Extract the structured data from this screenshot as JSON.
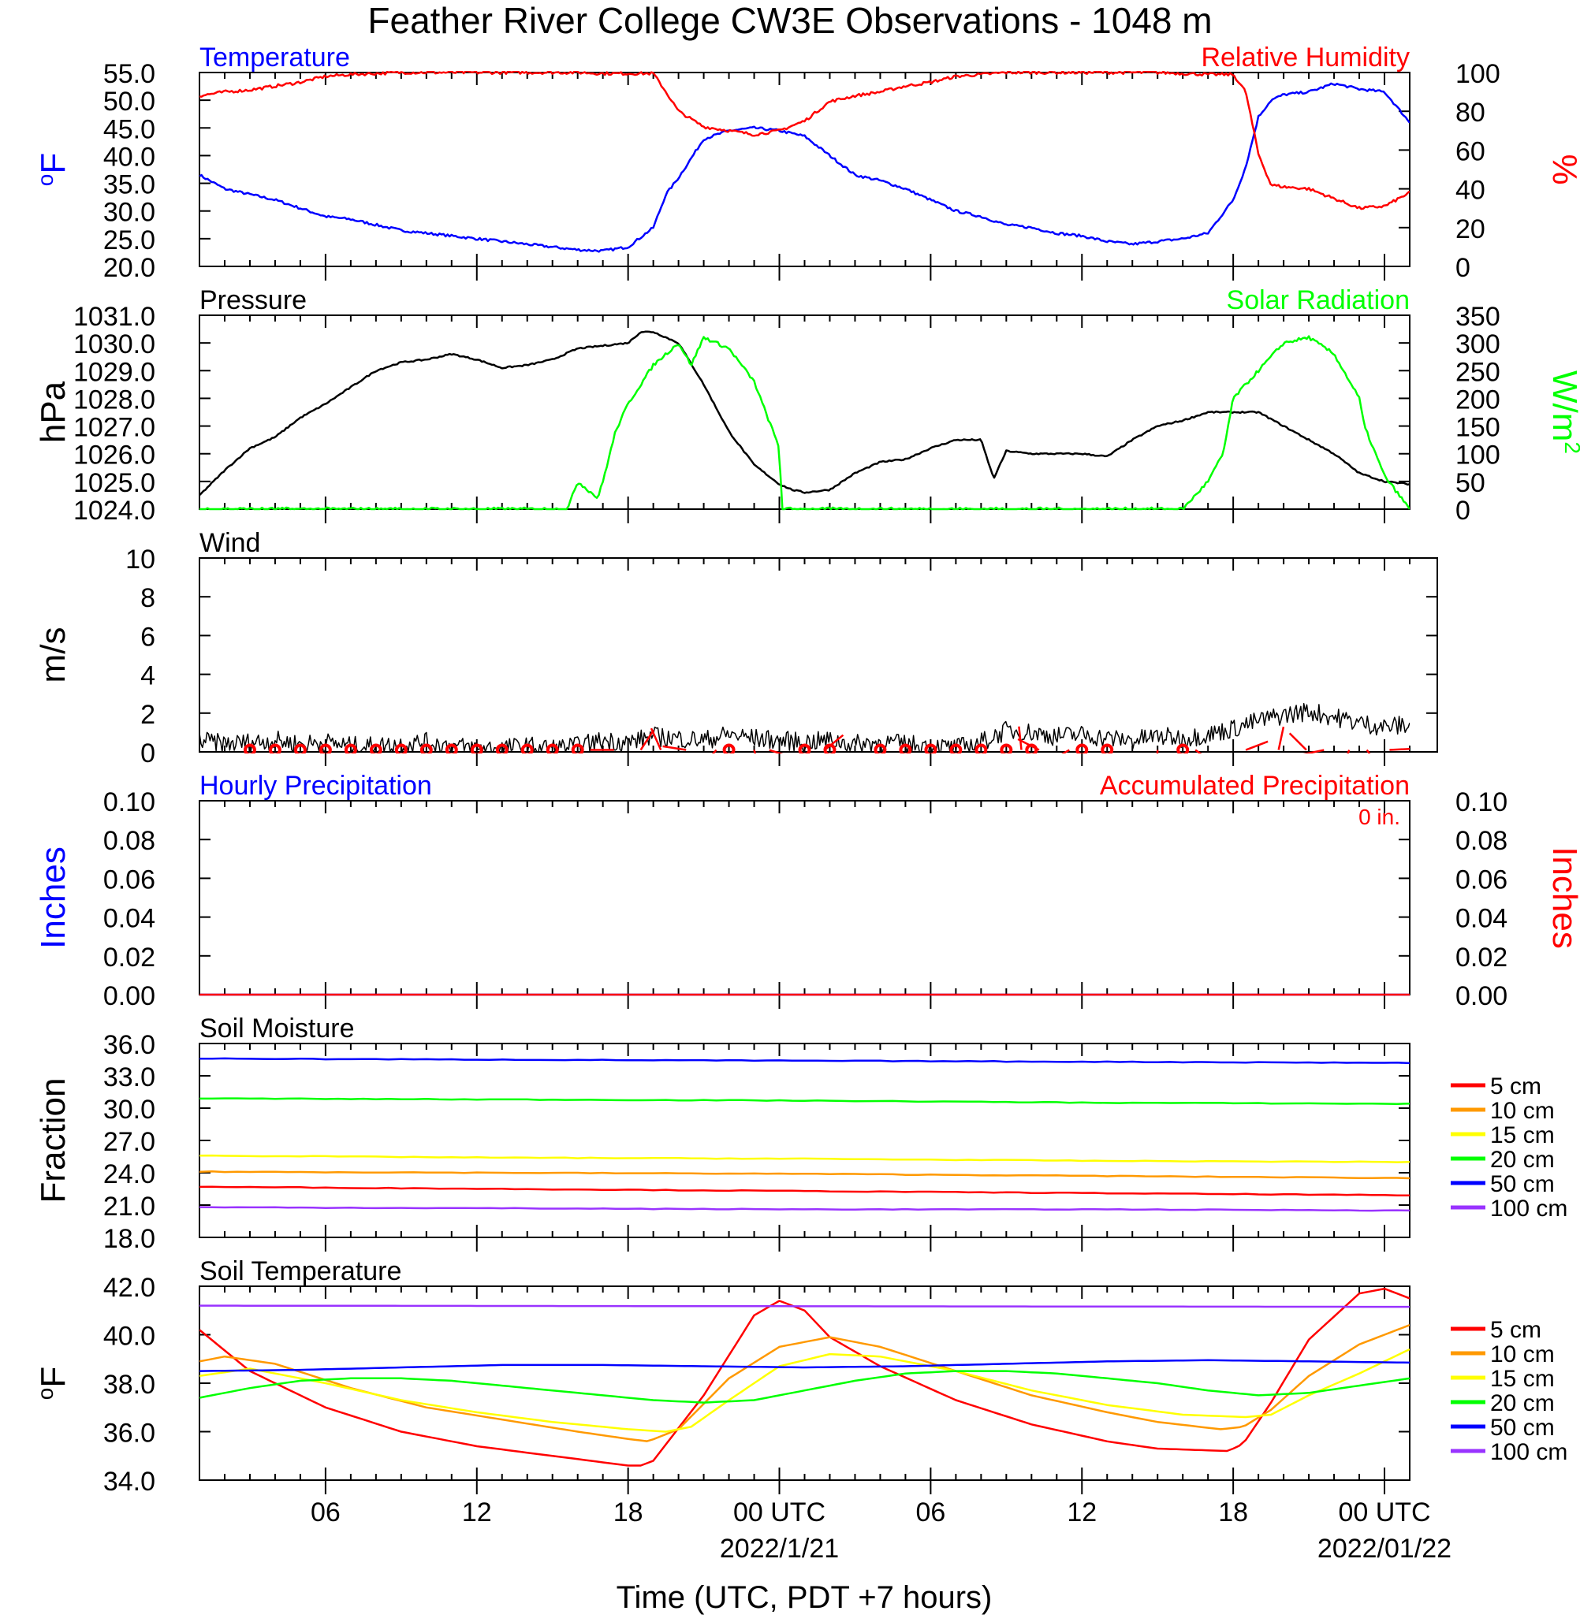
{
  "page_title": "Feather River College CW3E Observations - 1048 m",
  "x_axis": {
    "label": "Time (UTC, PDT +7 hours)",
    "range_hours": [
      0,
      48
    ],
    "ticks": [
      {
        "h": 5,
        "label": "06"
      },
      {
        "h": 11,
        "label": "12"
      },
      {
        "h": 17,
        "label": "18"
      },
      {
        "h": 23,
        "label": "00 UTC",
        "date": "2022/1/21"
      },
      {
        "h": 29,
        "label": "06"
      },
      {
        "h": 35,
        "label": "12"
      },
      {
        "h": 41,
        "label": "18"
      },
      {
        "h": 47,
        "label": "00 UTC",
        "date": "2022/01/22"
      }
    ]
  },
  "chart_data": [
    {
      "type": "line",
      "title_left": "Temperature",
      "title_right": "Relative Humidity",
      "ylabel_left": "oF",
      "ylabel_right": "%",
      "ylim_left": [
        20,
        55
      ],
      "ylim_right": [
        0,
        100
      ],
      "yticks_left": [
        "20.0",
        "25.0",
        "30.0",
        "35.0",
        "40.0",
        "45.0",
        "50.0",
        "55.0"
      ],
      "yticks_right": [
        "0",
        "20",
        "40",
        "60",
        "80",
        "100"
      ],
      "x_hours": [
        0,
        1,
        2,
        3,
        4,
        5,
        6,
        7,
        8,
        9,
        10,
        11,
        12,
        13,
        14,
        15,
        16,
        17,
        18,
        18.5,
        19,
        20,
        21,
        22,
        23,
        24,
        25,
        26,
        27,
        28,
        29,
        30,
        31,
        32,
        33,
        34,
        35,
        36,
        37,
        38,
        39,
        40,
        41,
        41.5,
        42,
        42.5,
        43,
        44,
        45,
        46,
        47,
        48
      ],
      "series": [
        {
          "name": "Temperature",
          "axis": "left",
          "color": "#0000ff",
          "values": [
            36.5,
            34,
            33,
            32,
            30.5,
            29,
            28.5,
            27.5,
            26.5,
            26,
            25.5,
            25,
            24.5,
            24,
            23.5,
            23,
            22.8,
            23.5,
            27,
            33,
            36,
            43,
            44.5,
            45,
            44.5,
            43.5,
            40,
            36.5,
            35.5,
            34,
            32,
            30,
            29,
            27.5,
            27,
            26,
            25.5,
            24.5,
            24,
            24.5,
            25,
            26,
            32,
            38,
            47,
            50,
            51,
            51.5,
            53,
            52,
            51.5,
            46
          ]
        },
        {
          "name": "Relative Humidity",
          "axis": "right",
          "color": "#ff0000",
          "values": [
            88,
            90,
            91,
            93,
            95,
            98,
            99,
            99.5,
            100,
            100,
            100,
            100,
            100,
            100,
            100,
            100,
            99.5,
            99.5,
            99.5,
            90,
            80,
            72,
            70,
            68,
            70,
            75,
            85,
            88,
            90,
            93,
            95,
            98,
            99,
            100,
            100,
            100,
            100,
            100,
            100,
            100,
            99.5,
            99,
            99,
            90,
            58,
            42,
            41,
            40,
            35,
            30,
            31,
            38
          ]
        }
      ]
    },
    {
      "type": "line",
      "title_left": "Pressure",
      "title_right": "Solar Radiation",
      "ylabel_left": "hPa",
      "ylabel_right": "W/m2",
      "ylim_left": [
        1024,
        1031
      ],
      "ylim_right": [
        0,
        350
      ],
      "yticks_left": [
        "1024.0",
        "1025.0",
        "1026.0",
        "1027.0",
        "1028.0",
        "1029.0",
        "1030.0",
        "1031.0"
      ],
      "yticks_right": [
        "0",
        "50",
        "100",
        "150",
        "200",
        "250",
        "300",
        "350"
      ],
      "series": [
        {
          "name": "Pressure",
          "axis": "left",
          "color": "#000000",
          "x_hours": [
            0,
            1,
            2,
            3,
            4,
            5,
            6,
            7,
            8,
            9,
            10,
            11,
            12,
            13,
            14,
            15,
            16,
            17,
            17.5,
            18,
            19,
            20,
            21,
            22,
            23,
            23.5,
            24,
            25,
            26,
            27,
            28,
            29,
            30,
            31,
            31.5,
            32,
            33,
            34,
            35,
            36,
            37,
            38,
            39,
            40,
            41,
            42,
            43,
            44,
            45,
            46,
            47,
            48
          ],
          "values": [
            1024.5,
            1025.4,
            1026.2,
            1026.6,
            1027.3,
            1027.8,
            1028.4,
            1029.0,
            1029.3,
            1029.4,
            1029.6,
            1029.4,
            1029.1,
            1029.2,
            1029.4,
            1029.8,
            1029.9,
            1030.0,
            1030.4,
            1030.4,
            1030.0,
            1028.5,
            1026.8,
            1025.6,
            1024.9,
            1024.7,
            1024.6,
            1024.7,
            1025.3,
            1025.7,
            1025.8,
            1026.2,
            1026.5,
            1026.5,
            1025.1,
            1026.1,
            1026.0,
            1026.0,
            1026.0,
            1025.9,
            1026.5,
            1027.0,
            1027.2,
            1027.5,
            1027.5,
            1027.5,
            1027.0,
            1026.5,
            1026.0,
            1025.3,
            1025.0,
            1024.9
          ]
        },
        {
          "name": "Solar Radiation",
          "axis": "right",
          "color": "#00ff00",
          "x_hours": [
            0,
            14.6,
            15,
            15.8,
            16,
            16.5,
            17,
            18,
            19,
            19.5,
            20,
            21,
            22,
            23,
            23.1,
            24,
            24.5,
            39,
            40,
            40.6,
            41,
            42,
            43,
            44,
            45,
            46,
            46.2,
            47,
            48
          ],
          "values": [
            0,
            0,
            50,
            20,
            50,
            140,
            190,
            260,
            300,
            260,
            310,
            290,
            230,
            110,
            0,
            0,
            0,
            0,
            50,
            100,
            200,
            250,
            300,
            310,
            280,
            200,
            150,
            60,
            0
          ]
        }
      ]
    },
    {
      "type": "line",
      "title_left": "Wind",
      "ylabel_left": "m/s",
      "ylim_left": [
        0,
        10
      ],
      "yticks_left": [
        "0",
        "2",
        "4",
        "6",
        "8",
        "10"
      ],
      "series": [
        {
          "name": "Wind",
          "color": "#000000",
          "x_hours": [
            0,
            1,
            2,
            3,
            4,
            5,
            6,
            7,
            8,
            9,
            10,
            11,
            12,
            13,
            14,
            15,
            16,
            17,
            18,
            19,
            20,
            21,
            22,
            23,
            24,
            25,
            26,
            27,
            28,
            29,
            30,
            31,
            32,
            33,
            34,
            35,
            36,
            37,
            38,
            39,
            40,
            41,
            42,
            43,
            44,
            45,
            46,
            47,
            48
          ],
          "values": [
            0.6,
            0.4,
            0.5,
            0.6,
            0.4,
            0.5,
            0.3,
            0.3,
            0.4,
            0.5,
            0.3,
            0.2,
            0.2,
            0.3,
            0.2,
            0.3,
            0.6,
            0.5,
            0.8,
            0.7,
            0.6,
            0.9,
            0.7,
            0.6,
            0.5,
            0.6,
            0.4,
            0.5,
            0.4,
            0.3,
            0.2,
            0.5,
            1.1,
            1.0,
            0.8,
            0.9,
            0.7,
            0.6,
            0.8,
            0.7,
            0.9,
            1.2,
            1.6,
            1.9,
            2.1,
            1.8,
            1.5,
            1.3,
            1.4
          ]
        }
      ],
      "calm_circles_hours": [
        2,
        3,
        4,
        5,
        6,
        7,
        8,
        9,
        10,
        11,
        12,
        13,
        14,
        15,
        21,
        24,
        25,
        27,
        28,
        29,
        30,
        31,
        32,
        33,
        35,
        36,
        39
      ],
      "barbs_hours": [
        15.5,
        17.5,
        18.3,
        19.3,
        20.5,
        22,
        22.6,
        24.8,
        32.6,
        33.3,
        34.5,
        38,
        39.5,
        41.5,
        42.8,
        43.9,
        44.6,
        45.6,
        46.3,
        47.2
      ]
    },
    {
      "type": "line",
      "title_left": "Hourly Precipitation",
      "title_right": "Accumulated Precipitation",
      "annotation": "0 in.",
      "ylabel_left": "Inches",
      "ylabel_right": "Inches",
      "ylim_left": [
        0,
        0.1
      ],
      "ylim_right": [
        0,
        0.1
      ],
      "yticks_left": [
        "0.00",
        "0.02",
        "0.04",
        "0.06",
        "0.08",
        "0.10"
      ],
      "yticks_right": [
        "0.00",
        "0.02",
        "0.04",
        "0.06",
        "0.08",
        "0.10"
      ],
      "series": [
        {
          "name": "Hourly Precipitation",
          "axis": "left",
          "color": "#0000ff",
          "x_hours": [
            0,
            48
          ],
          "values": [
            0,
            0
          ]
        },
        {
          "name": "Accumulated Precipitation",
          "axis": "right",
          "color": "#ff0000",
          "x_hours": [
            0,
            48
          ],
          "values": [
            0,
            0
          ]
        }
      ]
    },
    {
      "type": "line",
      "title_left": "Soil Moisture",
      "ylabel_left": "Fraction",
      "ylim_left": [
        18,
        36
      ],
      "yticks_left": [
        "18.0",
        "21.0",
        "24.0",
        "27.0",
        "30.0",
        "33.0",
        "36.0"
      ],
      "legend": [
        "5 cm",
        "10 cm",
        "15 cm",
        "20 cm",
        "50 cm",
        "100 cm"
      ],
      "series": [
        {
          "name": "5 cm",
          "color": "#ff0000",
          "x_hours": [
            0,
            12,
            24,
            36,
            48
          ],
          "values": [
            22.7,
            22.5,
            22.3,
            22.1,
            21.9
          ]
        },
        {
          "name": "10 cm",
          "color": "#ff9900",
          "x_hours": [
            0,
            12,
            24,
            36,
            48
          ],
          "values": [
            24.1,
            24.0,
            23.9,
            23.7,
            23.5
          ]
        },
        {
          "name": "15 cm",
          "color": "#ffff00",
          "x_hours": [
            0,
            12,
            24,
            36,
            48
          ],
          "values": [
            25.6,
            25.4,
            25.3,
            25.1,
            25.0
          ]
        },
        {
          "name": "20 cm",
          "color": "#00ff00",
          "x_hours": [
            0,
            12,
            24,
            36,
            48
          ],
          "values": [
            30.9,
            30.8,
            30.7,
            30.5,
            30.4
          ]
        },
        {
          "name": "50 cm",
          "color": "#0000ff",
          "x_hours": [
            0,
            12,
            24,
            36,
            48
          ],
          "values": [
            34.6,
            34.5,
            34.4,
            34.3,
            34.2
          ]
        },
        {
          "name": "100 cm",
          "color": "#9933ff",
          "x_hours": [
            0,
            12,
            24,
            36,
            48
          ],
          "values": [
            20.8,
            20.7,
            20.6,
            20.6,
            20.5
          ]
        }
      ]
    },
    {
      "type": "line",
      "title_left": "Soil Temperature",
      "ylabel_left": "oF",
      "ylim_left": [
        34,
        42
      ],
      "yticks_left": [
        "34.0",
        "36.0",
        "38.0",
        "40.0",
        "42.0"
      ],
      "legend": [
        "5 cm",
        "10 cm",
        "15 cm",
        "20 cm",
        "50 cm",
        "100 cm"
      ],
      "series": [
        {
          "name": "5 cm",
          "color": "#ff0000",
          "x_hours": [
            0,
            2,
            5,
            8,
            11,
            14,
            17,
            17.5,
            18,
            20,
            22,
            23,
            24,
            25,
            27,
            30,
            33,
            36,
            38,
            40.8,
            41.4,
            42.5,
            44,
            46,
            47,
            48
          ],
          "values": [
            40.2,
            38.5,
            37.0,
            36.0,
            35.4,
            35.0,
            34.6,
            34.6,
            34.8,
            37.5,
            40.8,
            41.4,
            41.0,
            39.9,
            38.7,
            37.3,
            36.3,
            35.6,
            35.3,
            35.2,
            35.5,
            37.2,
            39.8,
            41.7,
            41.9,
            41.5
          ]
        },
        {
          "name": "10 cm",
          "color": "#ff9900",
          "x_hours": [
            0,
            1,
            3,
            6,
            9,
            12,
            15,
            17,
            17.8,
            19,
            21,
            23,
            25,
            27,
            30,
            33,
            36,
            38,
            40.5,
            41.4,
            42.5,
            44,
            46,
            48
          ],
          "values": [
            38.9,
            39.1,
            38.8,
            37.8,
            37.0,
            36.5,
            36.0,
            35.7,
            35.6,
            36.1,
            38.2,
            39.5,
            39.9,
            39.5,
            38.5,
            37.5,
            36.8,
            36.4,
            36.1,
            36.2,
            36.9,
            38.3,
            39.6,
            40.4
          ]
        },
        {
          "name": "15 cm",
          "color": "#ffff00",
          "x_hours": [
            0,
            2,
            5,
            8,
            11,
            14,
            17,
            18.5,
            19.5,
            21,
            23,
            25,
            27,
            30,
            33,
            36,
            39,
            41.5,
            42.5,
            44,
            46,
            48
          ],
          "values": [
            38.3,
            38.6,
            38.0,
            37.3,
            36.8,
            36.4,
            36.1,
            36.0,
            36.2,
            37.3,
            38.7,
            39.2,
            39.1,
            38.5,
            37.7,
            37.1,
            36.7,
            36.6,
            36.7,
            37.5,
            38.4,
            39.4
          ]
        },
        {
          "name": "20 cm",
          "color": "#00ff00",
          "x_hours": [
            0,
            2,
            4,
            6,
            8,
            10,
            12,
            14,
            16,
            18,
            20,
            22,
            24,
            26,
            28,
            30,
            32,
            34,
            36,
            38,
            40,
            42,
            44,
            46,
            48
          ],
          "values": [
            37.4,
            37.8,
            38.1,
            38.2,
            38.2,
            38.1,
            37.9,
            37.7,
            37.5,
            37.3,
            37.2,
            37.3,
            37.7,
            38.1,
            38.4,
            38.5,
            38.5,
            38.4,
            38.2,
            38.0,
            37.7,
            37.5,
            37.6,
            37.9,
            38.2
          ]
        },
        {
          "name": "50 cm",
          "color": "#0000ff",
          "x_hours": [
            0,
            4,
            8,
            12,
            16,
            20,
            24,
            28,
            32,
            36,
            40,
            44,
            48
          ],
          "values": [
            38.5,
            38.55,
            38.65,
            38.75,
            38.75,
            38.7,
            38.65,
            38.7,
            38.8,
            38.9,
            38.95,
            38.9,
            38.85
          ]
        },
        {
          "name": "100 cm",
          "color": "#9933ff",
          "x_hours": [
            0,
            48
          ],
          "values": [
            41.2,
            41.15
          ]
        }
      ]
    }
  ]
}
